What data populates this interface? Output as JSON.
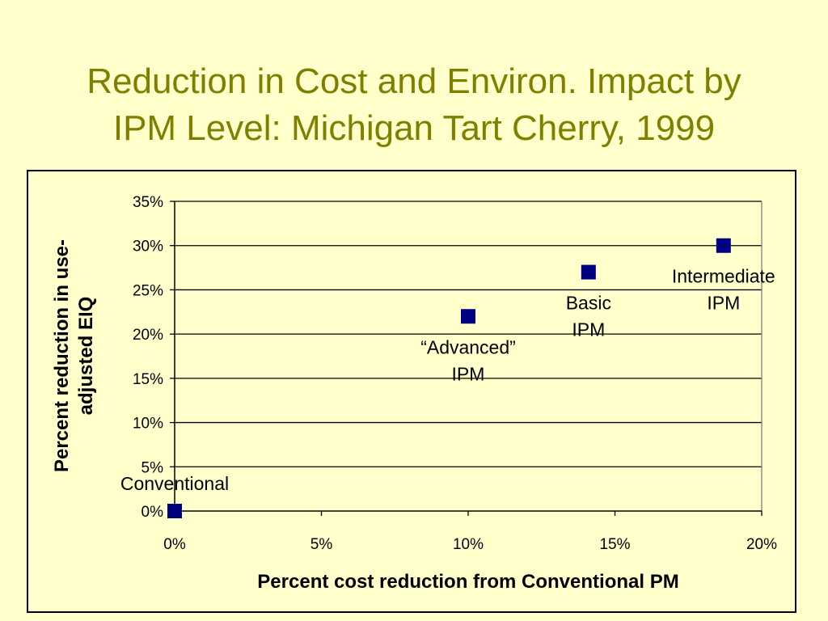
{
  "slide": {
    "title_line1": "Reduction in Cost and Environ. Impact by",
    "title_line2": "IPM Level: Michigan Tart Cherry, 1999"
  },
  "colors": {
    "background": "#FFFFCC",
    "title": "#808000",
    "marker": "#000080",
    "gridline": "#000000"
  },
  "chart_data": {
    "type": "scatter",
    "title": "",
    "xlabel": "Percent cost reduction from Conventional PM",
    "ylabel": "Percent reduction in use-adjusted EIQ",
    "xlim": [
      0,
      20
    ],
    "ylim": [
      0,
      35
    ],
    "x_ticks": [
      0,
      5,
      10,
      15,
      20
    ],
    "y_ticks": [
      0,
      5,
      10,
      15,
      20,
      25,
      30,
      35
    ],
    "x_tick_labels": [
      "0%",
      "5%",
      "10%",
      "15%",
      "20%"
    ],
    "y_tick_labels": [
      "0%",
      "5%",
      "10%",
      "15%",
      "20%",
      "25%",
      "30%",
      "35%"
    ],
    "grid": "horizontal",
    "legend": "none",
    "marker": "square",
    "points": [
      {
        "x": 0,
        "y": 0,
        "label_lines": [
          "Conventional"
        ],
        "label_position": "above"
      },
      {
        "x": 10,
        "y": 22,
        "label_lines": [
          "“Advanced”",
          "IPM"
        ],
        "label_position": "below"
      },
      {
        "x": 14.1,
        "y": 27,
        "label_lines": [
          "Basic",
          "IPM"
        ],
        "label_position": "below"
      },
      {
        "x": 18.7,
        "y": 30,
        "label_lines": [
          "Intermediate",
          "IPM"
        ],
        "label_position": "below"
      }
    ]
  }
}
